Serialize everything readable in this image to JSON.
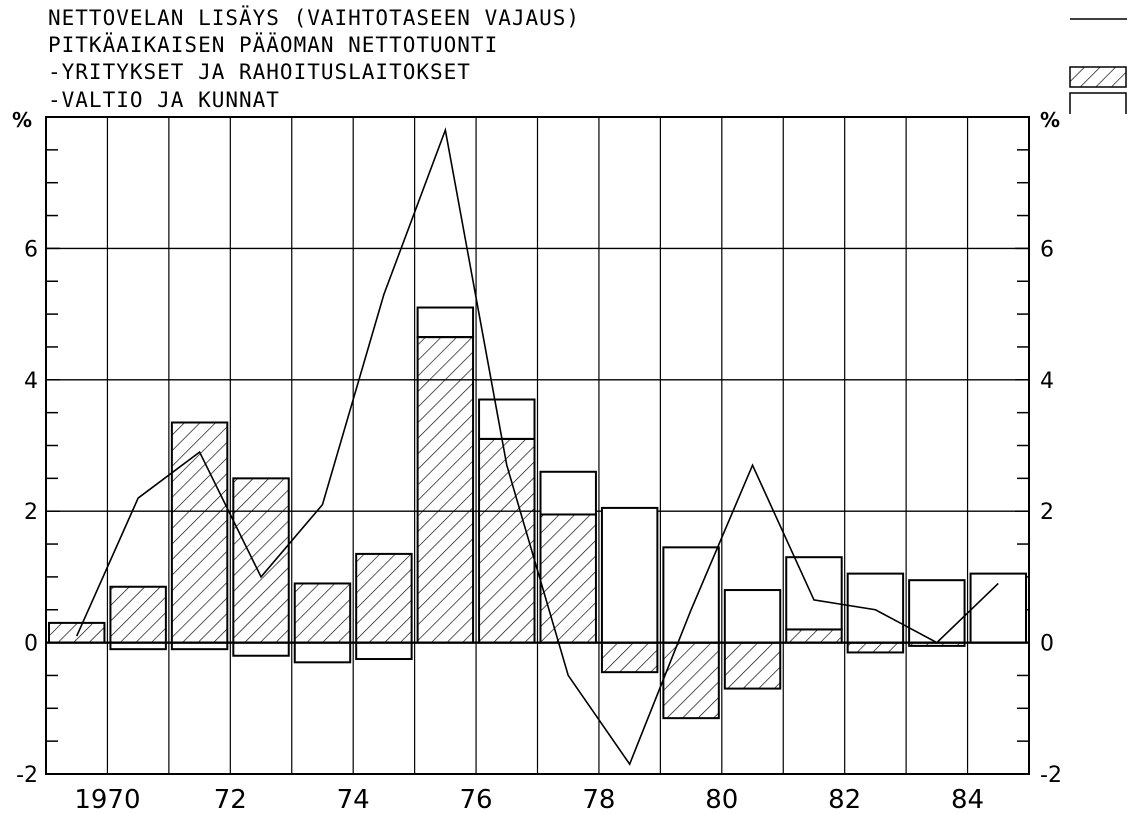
{
  "legend": {
    "line1": "NETTOVELAN LISÄYS (VAIHTOTASEEN VAJAUS)",
    "line2": "PITKÄAIKAISEN PÄÄOMAN NETTOTUONTI",
    "line3": "-YRITYKSET JA RAHOITUSLAITOKSET",
    "line4": "-VALTIO JA KUNNAT"
  },
  "chart_data": {
    "type": "bar",
    "y_unit_label_left": "%",
    "y_unit_label_right": "%",
    "ylim": [
      -2,
      8
    ],
    "yticks_labeled": [
      "-2",
      "0",
      "2",
      "4",
      "6"
    ],
    "xticks_labeled": [
      "1970",
      "72",
      "74",
      "76",
      "78",
      "80",
      "82",
      "84"
    ],
    "xlim": [
      1969,
      1985
    ],
    "grid": true,
    "legend_position": "top",
    "categories": [
      1969,
      1970,
      1971,
      1972,
      1973,
      1974,
      1975,
      1976,
      1977,
      1978,
      1979,
      1980,
      1981,
      1982,
      1983,
      1984
    ],
    "series": [
      {
        "name": "NETTOVELAN LISÄYS (VAIHTOTASEEN VAJAUS)",
        "kind": "line",
        "x": [
          1969.5,
          1970.5,
          1971.5,
          1972.5,
          1973.5,
          1974.5,
          1975.5,
          1976.5,
          1977.5,
          1978.5,
          1979.5,
          1980.5,
          1981.5,
          1982.5,
          1983.5,
          1984.5
        ],
        "values": [
          0.1,
          2.2,
          2.9,
          1.0,
          2.1,
          5.3,
          7.8,
          2.7,
          -0.5,
          -1.85,
          0.5,
          2.7,
          0.65,
          0.5,
          0.0,
          0.9
        ]
      },
      {
        "name": "-YRITYKSET JA RAHOITUSLAITOKSET",
        "kind": "bar_hatched",
        "values": [
          0.3,
          0.85,
          3.35,
          2.5,
          0.9,
          1.35,
          4.65,
          3.1,
          1.95,
          -0.45,
          -1.15,
          -0.7,
          0.2,
          -0.15,
          -0.05,
          0.0
        ]
      },
      {
        "name": "-VALTIO JA KUNNAT",
        "kind": "bar_open",
        "values": [
          0.0,
          -0.1,
          -0.1,
          -0.2,
          -0.3,
          -0.25,
          0.45,
          0.6,
          0.65,
          2.05,
          1.45,
          0.8,
          1.1,
          1.05,
          0.95,
          1.05
        ]
      }
    ]
  }
}
